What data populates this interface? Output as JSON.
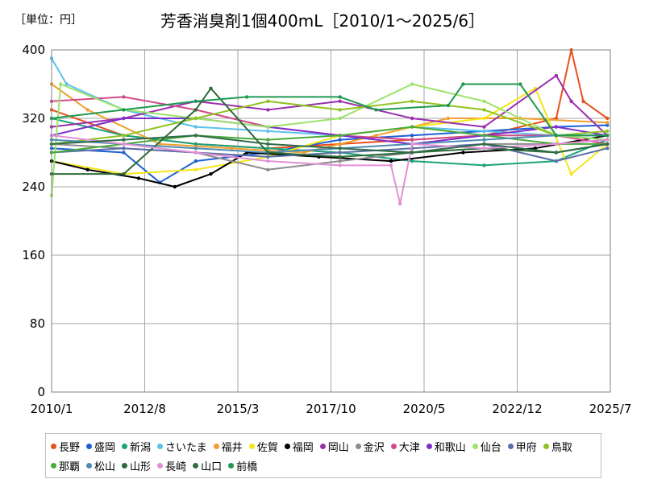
{
  "header": {
    "unit_label": "［単位：円］",
    "title": "芳香消臭剤1個400mL［2010/1～2025/6］"
  },
  "chart_data": {
    "type": "line",
    "title": "芳香消臭剤1個400mL［2010/1～2025/6］",
    "ylabel": "［単位：円］",
    "ylim": [
      0,
      400
    ],
    "yticks": [
      0,
      80,
      160,
      240,
      320,
      400
    ],
    "xlim": [
      "2010-01",
      "2025-07"
    ],
    "xticks": [
      {
        "label": "2010/1",
        "x": "2010-01"
      },
      {
        "label": "2012/8",
        "x": "2012-08"
      },
      {
        "label": "2015/3",
        "x": "2015-03"
      },
      {
        "label": "2017/10",
        "x": "2017-10"
      },
      {
        "label": "2020/5",
        "x": "2020-05"
      },
      {
        "label": "2022/12",
        "x": "2022-12"
      },
      {
        "label": "2025/7",
        "x": "2025-07"
      }
    ],
    "grid": true,
    "legend_position": "bottom",
    "series": [
      {
        "name": "長野",
        "color": "#e8501e",
        "points": [
          [
            "2010-01",
            330
          ],
          [
            "2012-01",
            300
          ],
          [
            "2014-01",
            290
          ],
          [
            "2016-01",
            285
          ],
          [
            "2018-01",
            290
          ],
          [
            "2020-01",
            295
          ],
          [
            "2022-01",
            300
          ],
          [
            "2024-01",
            320
          ],
          [
            "2024-06",
            400
          ],
          [
            "2024-10",
            340
          ],
          [
            "2025-06",
            320
          ]
        ]
      },
      {
        "name": "盛岡",
        "color": "#1f5fd6",
        "points": [
          [
            "2010-01",
            285
          ],
          [
            "2012-01",
            280
          ],
          [
            "2013-01",
            245
          ],
          [
            "2014-01",
            270
          ],
          [
            "2016-01",
            280
          ],
          [
            "2018-01",
            295
          ],
          [
            "2020-01",
            300
          ],
          [
            "2022-01",
            305
          ],
          [
            "2024-01",
            310
          ],
          [
            "2025-06",
            312
          ]
        ]
      },
      {
        "name": "新潟",
        "color": "#1aa37a",
        "points": [
          [
            "2010-01",
            320
          ],
          [
            "2012-01",
            300
          ],
          [
            "2014-01",
            290
          ],
          [
            "2016-01",
            285
          ],
          [
            "2018-01",
            280
          ],
          [
            "2020-01",
            270
          ],
          [
            "2022-01",
            265
          ],
          [
            "2024-01",
            270
          ],
          [
            "2025-06",
            295
          ]
        ]
      },
      {
        "name": "さいたま",
        "color": "#5bc0eb",
        "points": [
          [
            "2010-01",
            390
          ],
          [
            "2010-06",
            360
          ],
          [
            "2012-01",
            330
          ],
          [
            "2014-01",
            310
          ],
          [
            "2016-01",
            305
          ],
          [
            "2018-01",
            300
          ],
          [
            "2020-01",
            310
          ],
          [
            "2022-01",
            305
          ],
          [
            "2024-01",
            300
          ],
          [
            "2025-06",
            300
          ]
        ]
      },
      {
        "name": "福井",
        "color": "#f0a030",
        "points": [
          [
            "2010-01",
            360
          ],
          [
            "2011-01",
            330
          ],
          [
            "2013-01",
            290
          ],
          [
            "2015-01",
            285
          ],
          [
            "2017-01",
            280
          ],
          [
            "2019-01",
            300
          ],
          [
            "2021-01",
            320
          ],
          [
            "2023-01",
            320
          ],
          [
            "2025-06",
            315
          ]
        ]
      },
      {
        "name": "佐賀",
        "color": "#f5e61a",
        "points": [
          [
            "2010-01",
            270
          ],
          [
            "2012-01",
            255
          ],
          [
            "2014-01",
            260
          ],
          [
            "2016-01",
            275
          ],
          [
            "2018-01",
            300
          ],
          [
            "2020-01",
            310
          ],
          [
            "2022-01",
            320
          ],
          [
            "2023-06",
            355
          ],
          [
            "2024-06",
            255
          ],
          [
            "2025-06",
            290
          ]
        ]
      },
      {
        "name": "福岡",
        "color": "#000000",
        "points": [
          [
            "2010-01",
            270
          ],
          [
            "2011-01",
            260
          ],
          [
            "2012-06",
            250
          ],
          [
            "2013-06",
            240
          ],
          [
            "2014-06",
            255
          ],
          [
            "2015-06",
            280
          ],
          [
            "2017-06",
            275
          ],
          [
            "2019-06",
            270
          ],
          [
            "2021-06",
            280
          ],
          [
            "2023-06",
            285
          ],
          [
            "2025-06",
            300
          ]
        ]
      },
      {
        "name": "岡山",
        "color": "#9b2fae",
        "points": [
          [
            "2010-01",
            310
          ],
          [
            "2012-01",
            320
          ],
          [
            "2014-01",
            340
          ],
          [
            "2016-01",
            330
          ],
          [
            "2018-01",
            340
          ],
          [
            "2020-01",
            320
          ],
          [
            "2022-01",
            310
          ],
          [
            "2024-01",
            370
          ],
          [
            "2024-06",
            340
          ],
          [
            "2025-06",
            300
          ]
        ]
      },
      {
        "name": "金沢",
        "color": "#8c8c8c",
        "points": [
          [
            "2010-01",
            290
          ],
          [
            "2012-01",
            285
          ],
          [
            "2014-01",
            280
          ],
          [
            "2016-01",
            260
          ],
          [
            "2018-01",
            270
          ],
          [
            "2020-01",
            280
          ],
          [
            "2022-01",
            290
          ],
          [
            "2024-01",
            290
          ],
          [
            "2025-06",
            295
          ]
        ]
      },
      {
        "name": "大津",
        "color": "#d04a8a",
        "points": [
          [
            "2010-01",
            340
          ],
          [
            "2012-01",
            345
          ],
          [
            "2014-01",
            330
          ],
          [
            "2016-01",
            310
          ],
          [
            "2018-01",
            300
          ],
          [
            "2020-01",
            295
          ],
          [
            "2022-01",
            300
          ],
          [
            "2024-01",
            300
          ],
          [
            "2025-06",
            290
          ]
        ]
      },
      {
        "name": "和歌山",
        "color": "#7e2fc9",
        "points": [
          [
            "2010-01",
            300
          ],
          [
            "2012-01",
            320
          ],
          [
            "2014-01",
            320
          ],
          [
            "2016-01",
            310
          ],
          [
            "2018-01",
            300
          ],
          [
            "2020-01",
            290
          ],
          [
            "2022-01",
            300
          ],
          [
            "2024-01",
            310
          ],
          [
            "2025-06",
            300
          ]
        ]
      },
      {
        "name": "仙台",
        "color": "#9be36a",
        "points": [
          [
            "2010-01",
            230
          ],
          [
            "2010-04",
            360
          ],
          [
            "2012-01",
            330
          ],
          [
            "2014-01",
            320
          ],
          [
            "2016-01",
            310
          ],
          [
            "2018-01",
            320
          ],
          [
            "2020-01",
            360
          ],
          [
            "2022-01",
            340
          ],
          [
            "2024-01",
            300
          ],
          [
            "2025-06",
            295
          ]
        ]
      },
      {
        "name": "甲府",
        "color": "#5a6fa8",
        "points": [
          [
            "2010-01",
            280
          ],
          [
            "2012-01",
            285
          ],
          [
            "2014-01",
            280
          ],
          [
            "2016-01",
            275
          ],
          [
            "2018-01",
            280
          ],
          [
            "2020-01",
            285
          ],
          [
            "2022-01",
            290
          ],
          [
            "2024-01",
            270
          ],
          [
            "2025-06",
            285
          ]
        ]
      },
      {
        "name": "鳥取",
        "color": "#8fc21e",
        "points": [
          [
            "2010-01",
            290
          ],
          [
            "2012-01",
            300
          ],
          [
            "2014-01",
            320
          ],
          [
            "2016-01",
            340
          ],
          [
            "2018-01",
            330
          ],
          [
            "2020-01",
            340
          ],
          [
            "2022-01",
            330
          ],
          [
            "2024-01",
            300
          ],
          [
            "2025-06",
            305
          ]
        ]
      },
      {
        "name": "那覇",
        "color": "#4aaa3a",
        "points": [
          [
            "2010-01",
            280
          ],
          [
            "2012-01",
            290
          ],
          [
            "2014-01",
            300
          ],
          [
            "2016-01",
            295
          ],
          [
            "2018-01",
            300
          ],
          [
            "2020-01",
            310
          ],
          [
            "2022-01",
            300
          ],
          [
            "2024-01",
            290
          ],
          [
            "2025-06",
            290
          ]
        ]
      },
      {
        "name": "松山",
        "color": "#4d8bb5",
        "points": [
          [
            "2010-01",
            295
          ],
          [
            "2012-01",
            290
          ],
          [
            "2014-01",
            285
          ],
          [
            "2016-01",
            280
          ],
          [
            "2018-01",
            285
          ],
          [
            "2020-01",
            290
          ],
          [
            "2022-01",
            295
          ],
          [
            "2024-01",
            300
          ],
          [
            "2025-06",
            300
          ]
        ]
      },
      {
        "name": "山形",
        "color": "#2e6b3a",
        "points": [
          [
            "2010-01",
            255
          ],
          [
            "2012-01",
            255
          ],
          [
            "2014-01",
            330
          ],
          [
            "2014-06",
            355
          ],
          [
            "2016-01",
            280
          ],
          [
            "2018-01",
            275
          ],
          [
            "2020-01",
            280
          ],
          [
            "2022-01",
            285
          ],
          [
            "2024-01",
            280
          ],
          [
            "2025-06",
            290
          ]
        ]
      },
      {
        "name": "長崎",
        "color": "#e38fd6",
        "points": [
          [
            "2010-01",
            300
          ],
          [
            "2012-01",
            290
          ],
          [
            "2014-01",
            280
          ],
          [
            "2016-01",
            270
          ],
          [
            "2018-01",
            265
          ],
          [
            "2019-06",
            265
          ],
          [
            "2019-09",
            220
          ],
          [
            "2020-01",
            290
          ],
          [
            "2022-01",
            285
          ],
          [
            "2024-01",
            290
          ],
          [
            "2025-06",
            295
          ]
        ]
      },
      {
        "name": "山口",
        "color": "#2f6b48",
        "points": [
          [
            "2010-01",
            290
          ],
          [
            "2012-01",
            295
          ],
          [
            "2014-01",
            300
          ],
          [
            "2016-01",
            290
          ],
          [
            "2018-01",
            285
          ],
          [
            "2020-01",
            280
          ],
          [
            "2022-01",
            290
          ],
          [
            "2024-01",
            280
          ],
          [
            "2025-06",
            290
          ]
        ]
      },
      {
        "name": "前橋",
        "color": "#1e9a50",
        "points": [
          [
            "2010-01",
            320
          ],
          [
            "2012-01",
            330
          ],
          [
            "2014-01",
            340
          ],
          [
            "2015-06",
            345
          ],
          [
            "2018-01",
            345
          ],
          [
            "2019-01",
            330
          ],
          [
            "2021-01",
            335
          ],
          [
            "2021-06",
            360
          ],
          [
            "2023-01",
            360
          ],
          [
            "2024-01",
            300
          ],
          [
            "2025-06",
            300
          ]
        ]
      }
    ]
  }
}
